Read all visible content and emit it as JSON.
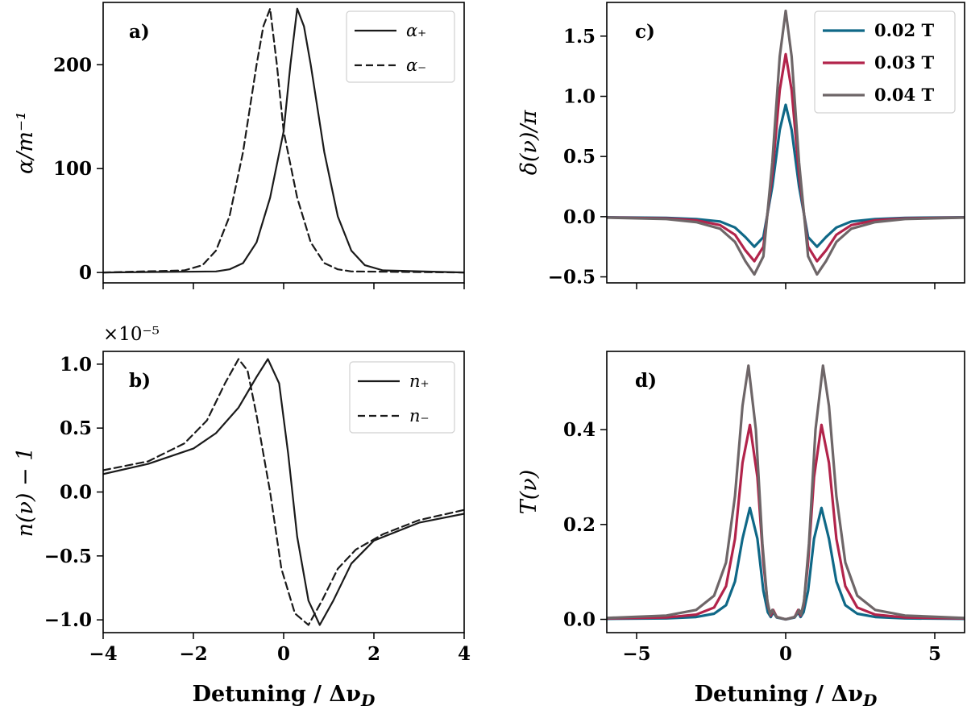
{
  "colors": {
    "black": "#1a1a1a",
    "teal": "#0f6887",
    "crimson": "#b2244b",
    "gray": "#6e6668"
  },
  "chart_data": [
    {
      "id": "a",
      "panel_label": "a)",
      "type": "line",
      "xlabel": "",
      "ylabel": "α/m⁻¹",
      "xlim": [
        -4,
        4
      ],
      "ylim": [
        -10,
        260
      ],
      "xticks": [
        -4,
        -2,
        0,
        2,
        4
      ],
      "xtick_labels": [
        "",
        "",
        "",
        "",
        ""
      ],
      "yticks": [
        0,
        100,
        200
      ],
      "ytick_labels": [
        "0",
        "100",
        "200"
      ],
      "legend": {
        "position": "top-right"
      },
      "series": [
        {
          "name": "α₊",
          "style": "solid",
          "color": "#1a1a1a",
          "x": [
            -4,
            -1.5,
            -1.2,
            -0.9,
            -0.6,
            -0.3,
            0,
            0.15,
            0.3,
            0.45,
            0.6,
            0.9,
            1.2,
            1.5,
            1.8,
            2.2,
            4
          ],
          "y": [
            0,
            1,
            3,
            9,
            29,
            72,
            136,
            200,
            254,
            237,
            200,
            116,
            54,
            21,
            7,
            2,
            0
          ]
        },
        {
          "name": "α₋",
          "style": "dashed",
          "color": "#1a1a1a",
          "x": [
            -4,
            -2.2,
            -1.8,
            -1.5,
            -1.2,
            -0.9,
            -0.6,
            -0.45,
            -0.3,
            -0.15,
            0,
            0.3,
            0.6,
            0.9,
            1.2,
            1.5,
            4
          ],
          "y": [
            0,
            2,
            7,
            21,
            54,
            116,
            200,
            237,
            254,
            200,
            136,
            72,
            29,
            9,
            3,
            1,
            0
          ]
        }
      ]
    },
    {
      "id": "b",
      "panel_label": "b)",
      "type": "line",
      "xlabel": "Detuning / Δν_D",
      "ylabel": "n(ν) − 1",
      "offset_label": "×10⁻⁵",
      "xlim": [
        -4,
        4
      ],
      "ylim": [
        -1.1,
        1.1
      ],
      "xticks": [
        -4,
        -2,
        0,
        2,
        4
      ],
      "xtick_labels": [
        "−4",
        "−2",
        "0",
        "2",
        "4"
      ],
      "yticks": [
        -1.0,
        -0.5,
        0.0,
        0.5,
        1.0
      ],
      "ytick_labels": [
        "−1.0",
        "−0.5",
        "0.0",
        "0.5",
        "1.0"
      ],
      "legend": {
        "position": "top-right"
      },
      "series": [
        {
          "name": "n₊",
          "style": "solid",
          "color": "#1a1a1a",
          "x": [
            -4,
            -3,
            -2,
            -1.5,
            -1.0,
            -0.6,
            -0.35,
            -0.1,
            0.1,
            0.3,
            0.55,
            0.8,
            1.1,
            1.5,
            2,
            3,
            4
          ],
          "y": [
            0.14,
            0.22,
            0.34,
            0.46,
            0.66,
            0.9,
            1.04,
            0.85,
            0.3,
            -0.35,
            -0.85,
            -1.04,
            -0.85,
            -0.56,
            -0.38,
            -0.24,
            -0.17
          ]
        },
        {
          "name": "n₋",
          "style": "dashed",
          "color": "#1a1a1a",
          "x": [
            -4,
            -3,
            -2.2,
            -1.7,
            -1.3,
            -1.0,
            -0.8,
            -0.6,
            -0.3,
            -0.05,
            0.25,
            0.55,
            0.85,
            1.2,
            1.6,
            2.2,
            3,
            4
          ],
          "y": [
            0.17,
            0.24,
            0.38,
            0.56,
            0.85,
            1.04,
            0.95,
            0.6,
            0.0,
            -0.6,
            -0.95,
            -1.04,
            -0.85,
            -0.6,
            -0.45,
            -0.33,
            -0.22,
            -0.14
          ]
        }
      ]
    },
    {
      "id": "c",
      "panel_label": "c)",
      "type": "line",
      "xlabel": "",
      "ylabel": "δ(ν)/π",
      "xlim": [
        -6,
        6
      ],
      "ylim": [
        -0.55,
        1.78
      ],
      "xticks": [
        -5,
        0,
        5
      ],
      "xtick_labels": [
        "",
        "",
        ""
      ],
      "yticks": [
        -0.5,
        0.0,
        0.5,
        1.0,
        1.5
      ],
      "ytick_labels": [
        "−0.5",
        "0.0",
        "0.5",
        "1.0",
        "1.5"
      ],
      "legend": {
        "position": "top-right"
      },
      "series": [
        {
          "name": "0.02 T",
          "color": "#0f6887",
          "x": [
            -6,
            -4,
            -3,
            -2.2,
            -1.7,
            -1.35,
            -1.05,
            -0.75,
            -0.45,
            -0.2,
            0,
            0.2,
            0.45,
            0.75,
            1.05,
            1.35,
            1.7,
            2.2,
            3,
            4,
            6
          ],
          "y": [
            -0.005,
            -0.01,
            -0.02,
            -0.04,
            -0.09,
            -0.17,
            -0.25,
            -0.17,
            0.25,
            0.72,
            0.93,
            0.72,
            0.25,
            -0.17,
            -0.25,
            -0.17,
            -0.09,
            -0.04,
            -0.02,
            -0.01,
            -0.005
          ]
        },
        {
          "name": "0.03 T",
          "color": "#b2244b",
          "x": [
            -6,
            -4,
            -3,
            -2.2,
            -1.7,
            -1.35,
            -1.05,
            -0.75,
            -0.45,
            -0.2,
            0,
            0.2,
            0.45,
            0.75,
            1.05,
            1.35,
            1.7,
            2.2,
            3,
            4,
            6
          ],
          "y": [
            -0.006,
            -0.015,
            -0.03,
            -0.07,
            -0.15,
            -0.28,
            -0.37,
            -0.25,
            0.35,
            1.05,
            1.35,
            1.05,
            0.35,
            -0.25,
            -0.37,
            -0.28,
            -0.15,
            -0.07,
            -0.03,
            -0.015,
            -0.006
          ]
        },
        {
          "name": "0.04 T",
          "color": "#6e6668",
          "x": [
            -6,
            -4,
            -3,
            -2.2,
            -1.7,
            -1.35,
            -1.05,
            -0.75,
            -0.45,
            -0.2,
            0,
            0.2,
            0.45,
            0.75,
            1.05,
            1.35,
            1.7,
            2.2,
            3,
            4,
            6
          ],
          "y": [
            -0.008,
            -0.02,
            -0.045,
            -0.1,
            -0.21,
            -0.37,
            -0.48,
            -0.33,
            0.45,
            1.33,
            1.71,
            1.33,
            0.45,
            -0.33,
            -0.48,
            -0.37,
            -0.21,
            -0.1,
            -0.045,
            -0.02,
            -0.008
          ]
        }
      ]
    },
    {
      "id": "d",
      "panel_label": "d)",
      "type": "line",
      "xlabel": "Detuning / Δν_D",
      "ylabel": "T(ν)",
      "xlim": [
        -6,
        6
      ],
      "ylim": [
        -0.028,
        0.565
      ],
      "xticks": [
        -5,
        0,
        5
      ],
      "xtick_labels": [
        "−5",
        "0",
        "5"
      ],
      "yticks": [
        0.0,
        0.2,
        0.4
      ],
      "ytick_labels": [
        "0.0",
        "0.2",
        "0.4"
      ],
      "legend": {
        "position": "none"
      },
      "series": [
        {
          "name": "0.02 T",
          "color": "#0f6887",
          "x": [
            -6,
            -4,
            -3,
            -2.4,
            -2.0,
            -1.7,
            -1.45,
            -1.2,
            -0.95,
            -0.75,
            -0.6,
            -0.5,
            -0.42,
            -0.3,
            0,
            0.3,
            0.42,
            0.5,
            0.6,
            0.75,
            0.95,
            1.2,
            1.45,
            1.7,
            2.0,
            2.4,
            3,
            4,
            6
          ],
          "y": [
            0.001,
            0.002,
            0.005,
            0.012,
            0.03,
            0.08,
            0.17,
            0.235,
            0.17,
            0.06,
            0.015,
            0.005,
            0.015,
            0.004,
            0,
            0.004,
            0.015,
            0.005,
            0.015,
            0.06,
            0.17,
            0.235,
            0.17,
            0.08,
            0.03,
            0.012,
            0.005,
            0.002,
            0.001
          ]
        },
        {
          "name": "0.03 T",
          "color": "#b2244b",
          "x": [
            -6,
            -4,
            -3,
            -2.4,
            -2.0,
            -1.7,
            -1.45,
            -1.2,
            -0.95,
            -0.75,
            -0.6,
            -0.5,
            -0.42,
            -0.3,
            0,
            0.3,
            0.42,
            0.5,
            0.6,
            0.75,
            0.95,
            1.2,
            1.45,
            1.7,
            2.0,
            2.4,
            3,
            4,
            6
          ],
          "y": [
            0.002,
            0.004,
            0.01,
            0.025,
            0.07,
            0.17,
            0.33,
            0.41,
            0.3,
            0.12,
            0.03,
            0.008,
            0.02,
            0.005,
            0,
            0.005,
            0.02,
            0.008,
            0.03,
            0.12,
            0.3,
            0.41,
            0.33,
            0.17,
            0.07,
            0.025,
            0.01,
            0.004,
            0.002
          ]
        },
        {
          "name": "0.04 T",
          "color": "#6e6668",
          "x": [
            -6,
            -4,
            -3,
            -2.4,
            -2.0,
            -1.7,
            -1.45,
            -1.25,
            -1.0,
            -0.78,
            -0.62,
            -0.52,
            -0.45,
            -0.3,
            0,
            0.3,
            0.45,
            0.52,
            0.62,
            0.78,
            1.0,
            1.25,
            1.45,
            1.7,
            2.0,
            2.4,
            3,
            4,
            6
          ],
          "y": [
            0.003,
            0.008,
            0.02,
            0.05,
            0.12,
            0.26,
            0.45,
            0.535,
            0.4,
            0.16,
            0.04,
            0.01,
            0.02,
            0.005,
            0,
            0.005,
            0.02,
            0.01,
            0.04,
            0.16,
            0.4,
            0.535,
            0.45,
            0.26,
            0.12,
            0.05,
            0.02,
            0.008,
            0.003
          ]
        }
      ]
    }
  ]
}
